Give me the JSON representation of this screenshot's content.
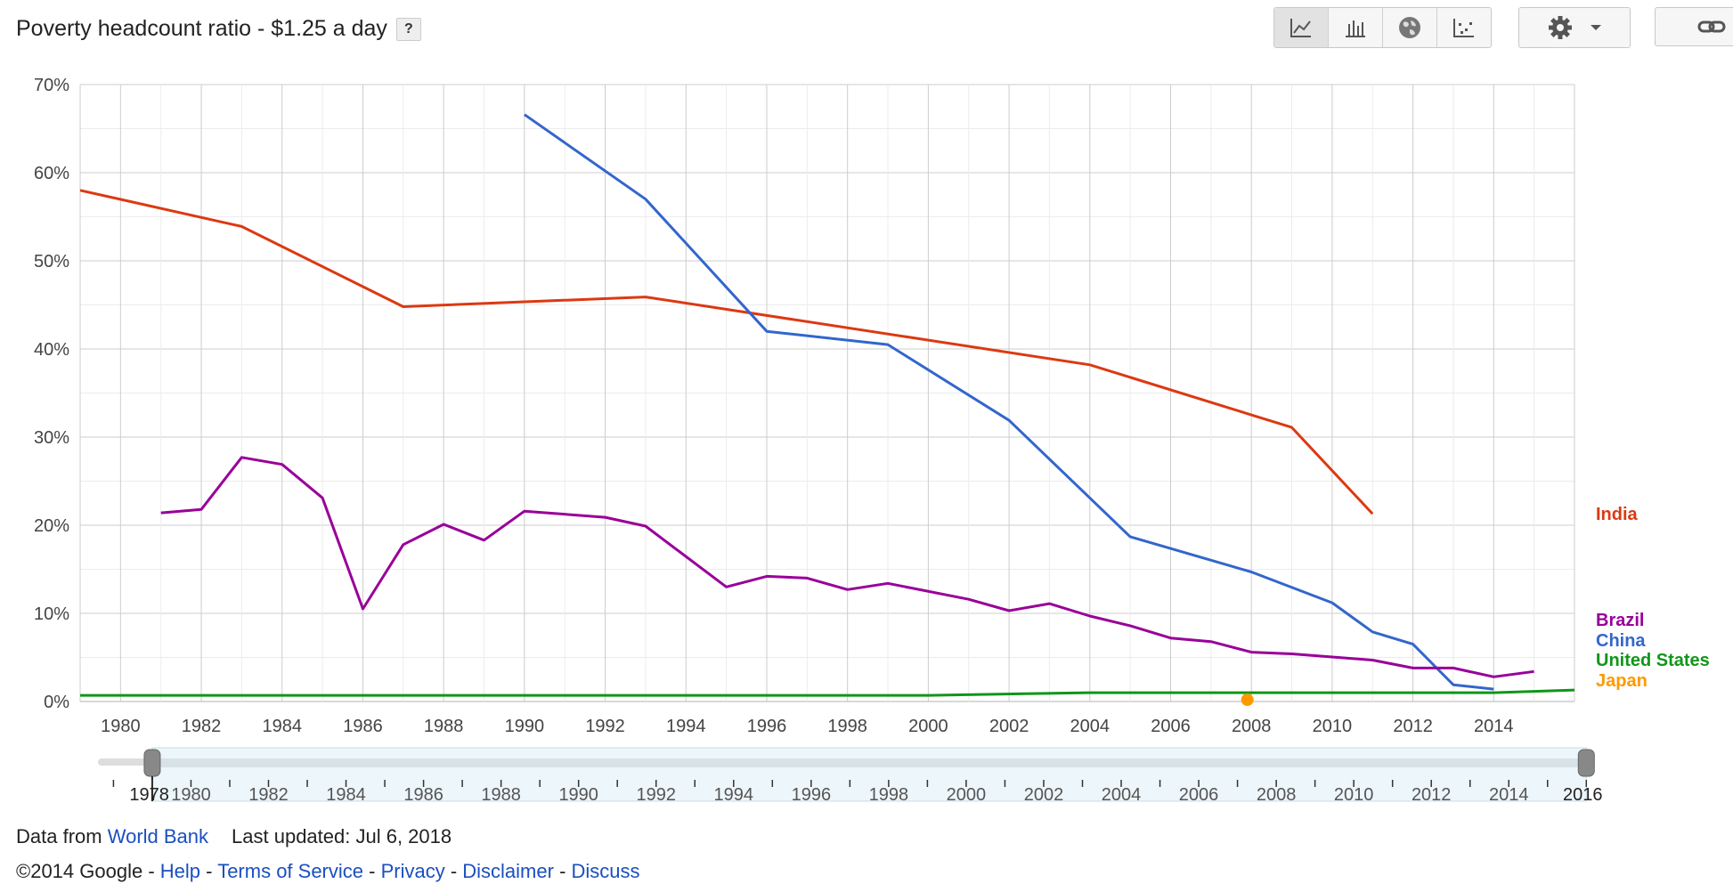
{
  "header": {
    "title": "Poverty headcount ratio - $1.25 a day",
    "help_label": "?"
  },
  "toolbar": {
    "views": [
      {
        "name": "line-chart-icon",
        "active": true
      },
      {
        "name": "bar-chart-icon",
        "active": false
      },
      {
        "name": "map-globe-icon",
        "active": false
      },
      {
        "name": "scatter-plot-icon",
        "active": false
      }
    ],
    "settings_icon": "gear-icon",
    "link_icon": "link-icon"
  },
  "chart_data": {
    "type": "line",
    "xlim": [
      1979,
      2016
    ],
    "ylim": [
      0,
      70
    ],
    "yticks": [
      0,
      10,
      20,
      30,
      40,
      50,
      60,
      70
    ],
    "ytick_labels": [
      "0%",
      "10%",
      "20%",
      "30%",
      "40%",
      "50%",
      "60%",
      "70%"
    ],
    "xticks": [
      1980,
      1982,
      1984,
      1986,
      1988,
      1990,
      1992,
      1994,
      1996,
      1998,
      2000,
      2002,
      2004,
      2006,
      2008,
      2010,
      2012,
      2014
    ],
    "xtick_labels": [
      "1980",
      "1982",
      "1984",
      "1986",
      "1988",
      "1990",
      "1992",
      "1994",
      "1996",
      "1998",
      "2000",
      "2002",
      "2004",
      "2006",
      "2008",
      "2010",
      "2012",
      "2014"
    ],
    "grid": true,
    "series": [
      {
        "name": "India",
        "color": "#dc3912",
        "points": [
          [
            1979,
            58.0
          ],
          [
            1983,
            53.9
          ],
          [
            1987,
            44.8
          ],
          [
            1993,
            45.9
          ],
          [
            2004,
            38.2
          ],
          [
            2009,
            31.1
          ],
          [
            2011,
            21.3
          ]
        ]
      },
      {
        "name": "China",
        "color": "#3366cc",
        "points": [
          [
            1990,
            66.6
          ],
          [
            1993,
            57.0
          ],
          [
            1996,
            42.0
          ],
          [
            1999,
            40.5
          ],
          [
            2002,
            31.9
          ],
          [
            2005,
            18.7
          ],
          [
            2008,
            14.7
          ],
          [
            2010,
            11.2
          ],
          [
            2011,
            7.9
          ],
          [
            2012,
            6.5
          ],
          [
            2013,
            1.9
          ],
          [
            2014,
            1.4
          ]
        ]
      },
      {
        "name": "Brazil",
        "color": "#990099",
        "points": [
          [
            1981,
            21.4
          ],
          [
            1982,
            21.8
          ],
          [
            1983,
            27.7
          ],
          [
            1984,
            26.9
          ],
          [
            1985,
            23.1
          ],
          [
            1986,
            10.5
          ],
          [
            1987,
            17.8
          ],
          [
            1988,
            20.1
          ],
          [
            1989,
            18.3
          ],
          [
            1990,
            21.6
          ],
          [
            1992,
            20.9
          ],
          [
            1993,
            19.9
          ],
          [
            1995,
            13.0
          ],
          [
            1996,
            14.2
          ],
          [
            1997,
            14.0
          ],
          [
            1998,
            12.7
          ],
          [
            1999,
            13.4
          ],
          [
            2001,
            11.6
          ],
          [
            2002,
            10.3
          ],
          [
            2003,
            11.1
          ],
          [
            2004,
            9.7
          ],
          [
            2005,
            8.6
          ],
          [
            2006,
            7.2
          ],
          [
            2007,
            6.8
          ],
          [
            2008,
            5.6
          ],
          [
            2009,
            5.4
          ],
          [
            2011,
            4.7
          ],
          [
            2012,
            3.8
          ],
          [
            2013,
            3.8
          ],
          [
            2014,
            2.8
          ],
          [
            2015,
            3.4
          ]
        ]
      },
      {
        "name": "United States",
        "color": "#109618",
        "points": [
          [
            1979,
            0.7
          ],
          [
            2000,
            0.7
          ],
          [
            2004,
            1.0
          ],
          [
            2014,
            1.0
          ],
          [
            2016,
            1.3
          ]
        ]
      },
      {
        "name": "Japan",
        "color": "#ff9900",
        "points": [
          [
            2007.9,
            0.2
          ]
        ]
      }
    ],
    "legend": {
      "placement": "right"
    },
    "range_slider": {
      "min_label": "1978",
      "max_label": "2016",
      "tick_labels": [
        "1980",
        "1982",
        "1984",
        "1986",
        "1988",
        "1990",
        "1992",
        "1994",
        "1996",
        "1998",
        "2000",
        "2002",
        "2004",
        "2006",
        "2008",
        "2010",
        "2012",
        "2014"
      ]
    }
  },
  "footer": {
    "data_from_label": "Data from",
    "data_source_link": "World Bank",
    "last_updated": "Last updated: Jul 6, 2018",
    "copyright": "©2014 Google",
    "sep": " - ",
    "links": [
      "Help",
      "Terms of Service",
      "Privacy",
      "Disclaimer",
      "Discuss"
    ]
  }
}
